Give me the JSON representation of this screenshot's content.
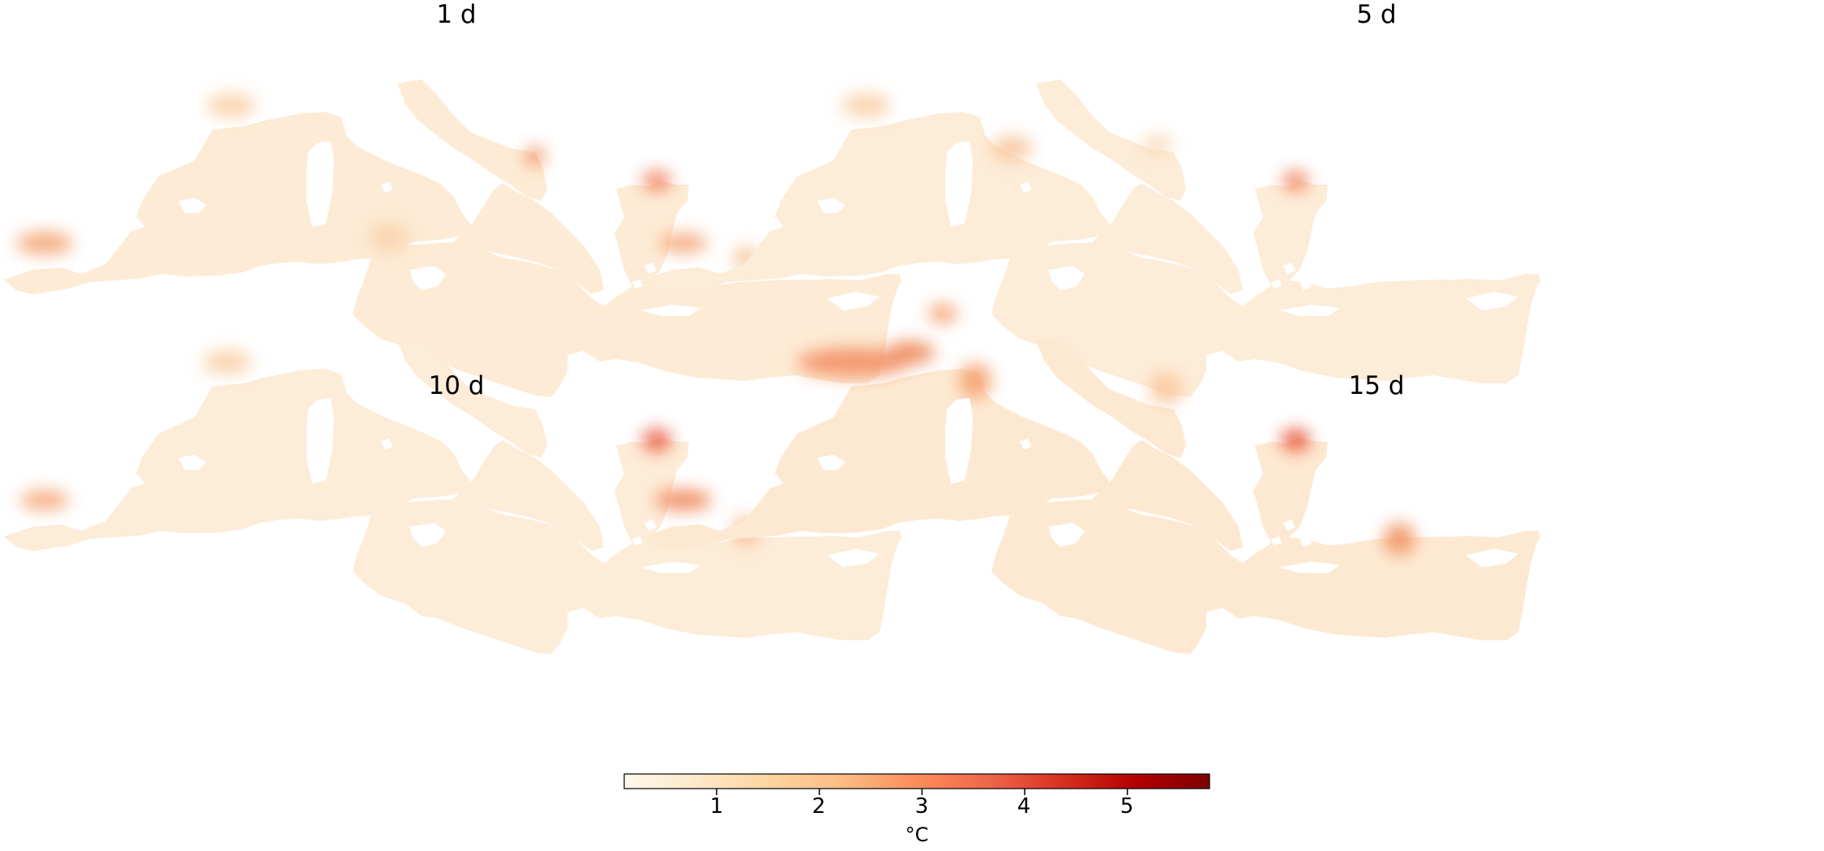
{
  "panels": [
    {
      "title": "1 d"
    },
    {
      "title": "5 d"
    },
    {
      "title": "10 d"
    },
    {
      "title": "15 d"
    }
  ],
  "colorbar": {
    "colormap": "OrRd",
    "colors": [
      "#fff7ec",
      "#fee8c8",
      "#fdd49e",
      "#fdbb84",
      "#fc8d59",
      "#ef6548",
      "#d7301f",
      "#b30000",
      "#7f0000"
    ],
    "range": [
      0.1,
      5.8
    ],
    "ticks": [
      "1",
      "2",
      "3",
      "4",
      "5"
    ],
    "unit": "°C"
  }
}
